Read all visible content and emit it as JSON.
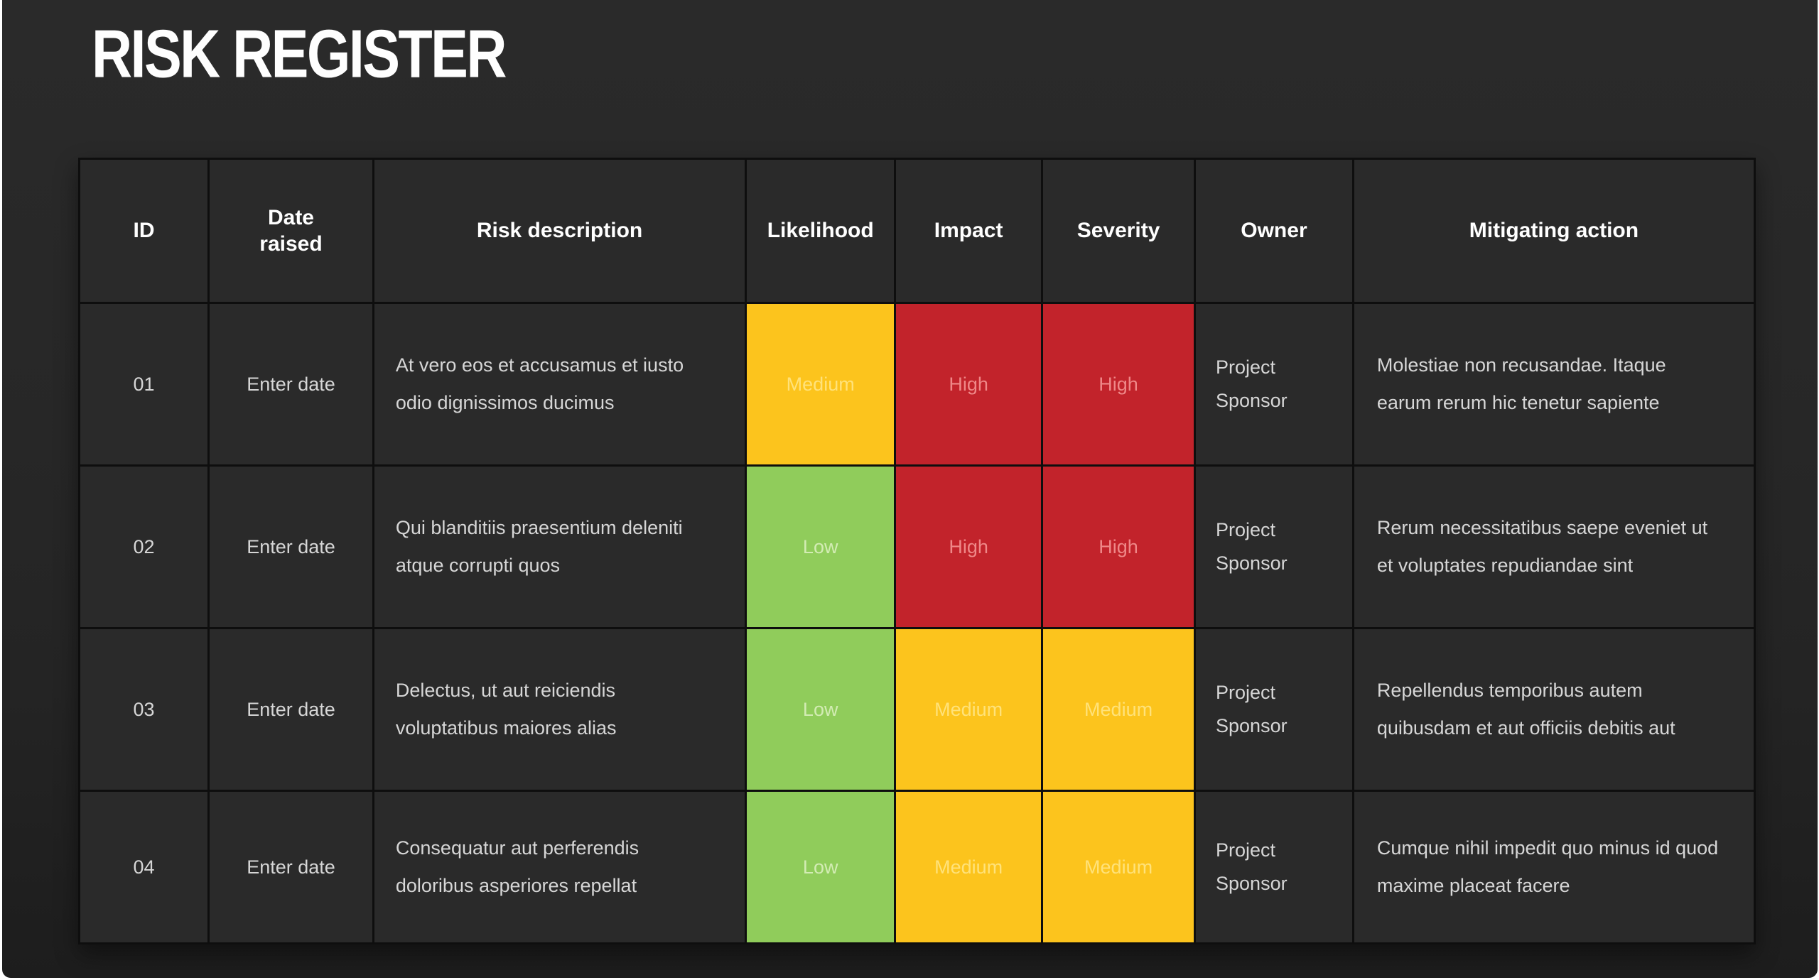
{
  "title": "RISK REGISTER",
  "colors": {
    "slide_background": "#272727",
    "cell_background": "#2a2a2a",
    "grid_line": "#0e0e0e",
    "header_text": "#ffffff",
    "body_text": "#d6d6d6"
  },
  "levels": {
    "Low": {
      "bg": "#90CC5B",
      "fg": "#D3ECB4"
    },
    "Medium": {
      "bg": "#FCC41D",
      "fg": "#FFE27A"
    },
    "High": {
      "bg": "#C2232B",
      "fg": "#EF8888"
    }
  },
  "table": {
    "columns": [
      "ID",
      "Date raised",
      "Risk description",
      "Likelihood",
      "Impact",
      "Severity",
      "Owner",
      "Mitigating action"
    ],
    "rows": [
      {
        "id": "01",
        "date_raised": "Enter date",
        "risk_description": "At vero eos et accusamus et iusto odio dignissimos ducimus",
        "likelihood": "Medium",
        "impact": "High",
        "severity": "High",
        "owner": "Project Sponsor",
        "mitigating_action": "Molestiae non recusandae. Itaque earum rerum hic tenetur sapiente"
      },
      {
        "id": "02",
        "date_raised": "Enter date",
        "risk_description": "Qui blanditiis praesentium deleniti atque corrupti quos",
        "likelihood": "Low",
        "impact": "High",
        "severity": "High",
        "owner": "Project Sponsor",
        "mitigating_action": "Rerum necessitatibus saepe eveniet ut et voluptates repudiandae sint"
      },
      {
        "id": "03",
        "date_raised": "Enter date",
        "risk_description": "Delectus, ut aut reiciendis voluptatibus maiores alias",
        "likelihood": "Low",
        "impact": "Medium",
        "severity": "Medium",
        "owner": "Project Sponsor",
        "mitigating_action": "Repellendus temporibus autem quibusdam et aut officiis debitis aut"
      },
      {
        "id": "04",
        "date_raised": "Enter date",
        "risk_description": "Consequatur aut perferendis doloribus asperiores repellat",
        "likelihood": "Low",
        "impact": "Medium",
        "severity": "Medium",
        "owner": "Project Sponsor",
        "mitigating_action": "Cumque nihil impedit quo minus id quod maxime placeat facere"
      }
    ]
  }
}
